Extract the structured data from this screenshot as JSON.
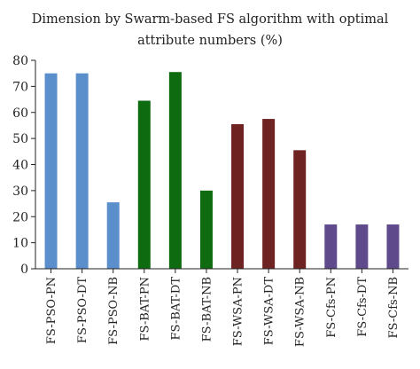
{
  "chart_data": {
    "type": "bar",
    "title_line1": "Dimension by Swarm-based FS algorithm with optimal",
    "title_line2": "attribute numbers (%)",
    "categories": [
      "FS-PSO-PN",
      "FS-PSO-DT",
      "FS-PSO-NB",
      "FS-BAT-PN",
      "FS-BAT-DT",
      "FS-BAT-NB",
      "FS-WSA-PN",
      "FS-WSA-DT",
      "FS-WSA-NB",
      "FS-Cfs-PN",
      "FS-Cfs-DT",
      "FS-Cfs-NB"
    ],
    "values": [
      75,
      75,
      25.5,
      64.5,
      75.5,
      30,
      55.5,
      57.5,
      45.5,
      17,
      17,
      17
    ],
    "colors": [
      "#5b8fcb",
      "#5b8fcb",
      "#5b8fcb",
      "#0f6b0f",
      "#0f6b0f",
      "#0f6b0f",
      "#6e2222",
      "#6e2222",
      "#6e2222",
      "#5f4b8b",
      "#5f4b8b",
      "#5f4b8b"
    ],
    "ylim": [
      0,
      80
    ],
    "yticks": [
      0,
      10,
      20,
      30,
      40,
      50,
      60,
      70,
      80
    ],
    "grid": false,
    "legend": "none"
  }
}
